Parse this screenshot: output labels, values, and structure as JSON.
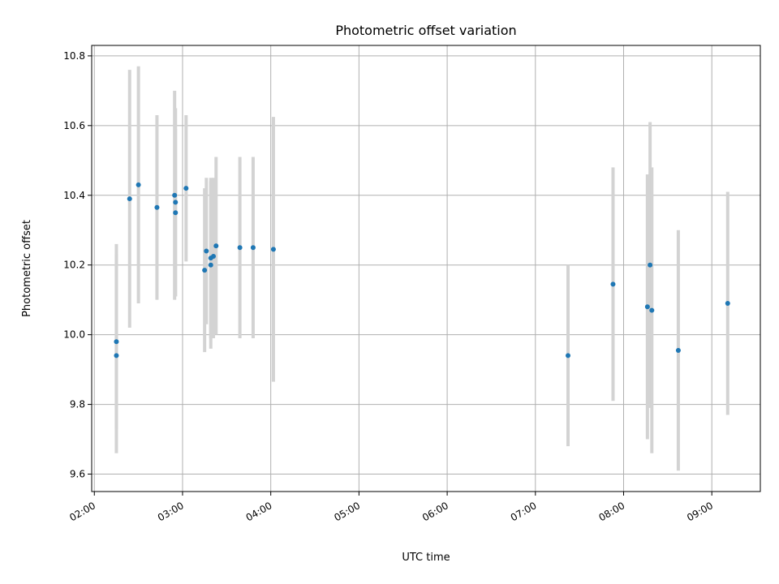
{
  "chart_data": {
    "type": "scatter",
    "title": "Photometric offset variation",
    "xlabel": "UTC time",
    "ylabel": "Photometric offset",
    "x_unit": "hours UTC",
    "xlim": [
      1.97,
      9.55
    ],
    "ylim": [
      9.55,
      10.83
    ],
    "x_ticks": [
      {
        "value": 2,
        "label": "02:00"
      },
      {
        "value": 3,
        "label": "03:00"
      },
      {
        "value": 4,
        "label": "04:00"
      },
      {
        "value": 5,
        "label": "05:00"
      },
      {
        "value": 6,
        "label": "06:00"
      },
      {
        "value": 7,
        "label": "07:00"
      },
      {
        "value": 8,
        "label": "08:00"
      },
      {
        "value": 9,
        "label": "09:00"
      }
    ],
    "y_ticks": [
      {
        "value": 9.6,
        "label": "9.6"
      },
      {
        "value": 9.8,
        "label": "9.8"
      },
      {
        "value": 10.0,
        "label": "10.0"
      },
      {
        "value": 10.2,
        "label": "10.2"
      },
      {
        "value": 10.4,
        "label": "10.4"
      },
      {
        "value": 10.6,
        "label": "10.6"
      },
      {
        "value": 10.8,
        "label": "10.8"
      }
    ],
    "grid": true,
    "legend": false,
    "colors": {
      "point": "#1f77b4",
      "error_bar": "#d3d3d3",
      "grid": "#b0b0b0"
    },
    "points": [
      {
        "x": 2.25,
        "y": 9.98,
        "low": 9.73,
        "high": 10.23
      },
      {
        "x": 2.25,
        "y": 9.94,
        "low": 9.66,
        "high": 10.26
      },
      {
        "x": 2.4,
        "y": 10.39,
        "low": 10.02,
        "high": 10.76
      },
      {
        "x": 2.5,
        "y": 10.43,
        "low": 10.09,
        "high": 10.77
      },
      {
        "x": 2.71,
        "y": 10.365,
        "low": 10.1,
        "high": 10.63
      },
      {
        "x": 2.91,
        "y": 10.4,
        "low": 10.1,
        "high": 10.7
      },
      {
        "x": 2.92,
        "y": 10.38,
        "low": 10.11,
        "high": 10.65
      },
      {
        "x": 2.92,
        "y": 10.35,
        "low": 10.11,
        "high": 10.59
      },
      {
        "x": 3.04,
        "y": 10.42,
        "low": 10.21,
        "high": 10.63
      },
      {
        "x": 3.25,
        "y": 10.185,
        "low": 9.95,
        "high": 10.42
      },
      {
        "x": 3.27,
        "y": 10.24,
        "low": 10.03,
        "high": 10.45
      },
      {
        "x": 3.32,
        "y": 10.2,
        "low": 9.96,
        "high": 10.44
      },
      {
        "x": 3.32,
        "y": 10.22,
        "low": 9.99,
        "high": 10.45
      },
      {
        "x": 3.35,
        "y": 10.225,
        "low": 9.99,
        "high": 10.45
      },
      {
        "x": 3.38,
        "y": 10.255,
        "low": 10.0,
        "high": 10.51
      },
      {
        "x": 3.65,
        "y": 10.25,
        "low": 9.99,
        "high": 10.51
      },
      {
        "x": 3.8,
        "y": 10.25,
        "low": 9.99,
        "high": 10.51
      },
      {
        "x": 4.03,
        "y": 10.245,
        "low": 9.865,
        "high": 10.625
      },
      {
        "x": 7.37,
        "y": 9.94,
        "low": 9.68,
        "high": 10.2
      },
      {
        "x": 7.88,
        "y": 10.145,
        "low": 9.81,
        "high": 10.48
      },
      {
        "x": 8.27,
        "y": 10.08,
        "low": 9.7,
        "high": 10.46
      },
      {
        "x": 8.3,
        "y": 10.2,
        "low": 9.79,
        "high": 10.61
      },
      {
        "x": 8.32,
        "y": 10.07,
        "low": 9.66,
        "high": 10.48
      },
      {
        "x": 8.62,
        "y": 9.955,
        "low": 9.61,
        "high": 10.3
      },
      {
        "x": 9.18,
        "y": 10.09,
        "low": 9.77,
        "high": 10.41
      }
    ]
  }
}
